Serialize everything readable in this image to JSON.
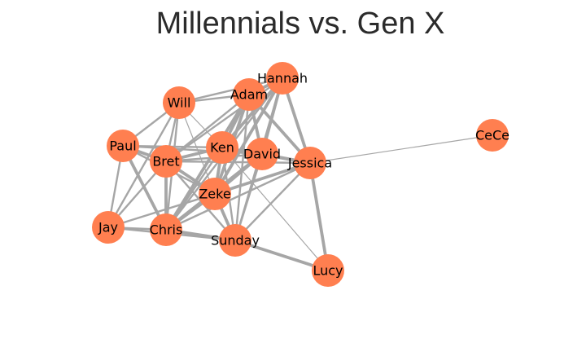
{
  "title": "Millennials vs. Gen X",
  "colors": {
    "node_fill": "#FF7F50",
    "edge": "#a6a6a6",
    "title": "#2b2b2b",
    "background": "#ffffff"
  },
  "nodes": [
    {
      "id": "will",
      "label": "Will"
    },
    {
      "id": "adam",
      "label": "Adam"
    },
    {
      "id": "hannah",
      "label": "Hannah"
    },
    {
      "id": "paul",
      "label": "Paul"
    },
    {
      "id": "bret",
      "label": "Bret"
    },
    {
      "id": "ken",
      "label": "Ken"
    },
    {
      "id": "david",
      "label": "David"
    },
    {
      "id": "jessica",
      "label": "Jessica"
    },
    {
      "id": "cece",
      "label": "CeCe"
    },
    {
      "id": "zeke",
      "label": "Zeke"
    },
    {
      "id": "jay",
      "label": "Jay"
    },
    {
      "id": "chris",
      "label": "Chris"
    },
    {
      "id": "sunday",
      "label": "Sunday"
    },
    {
      "id": "lucy",
      "label": "Lucy"
    }
  ],
  "edges": [
    {
      "source": "jessica",
      "target": "cece",
      "weight": 1
    },
    {
      "source": "will",
      "target": "adam",
      "weight": 2
    },
    {
      "source": "will",
      "target": "hannah",
      "weight": 2
    },
    {
      "source": "will",
      "target": "paul",
      "weight": 2
    },
    {
      "source": "will",
      "target": "bret",
      "weight": 2
    },
    {
      "source": "will",
      "target": "ken",
      "weight": 1
    },
    {
      "source": "will",
      "target": "zeke",
      "weight": 1
    },
    {
      "source": "will",
      "target": "chris",
      "weight": 2
    },
    {
      "source": "will",
      "target": "jay",
      "weight": 2
    },
    {
      "source": "adam",
      "target": "hannah",
      "weight": 3
    },
    {
      "source": "adam",
      "target": "ken",
      "weight": 3
    },
    {
      "source": "adam",
      "target": "david",
      "weight": 3
    },
    {
      "source": "adam",
      "target": "jessica",
      "weight": 3
    },
    {
      "source": "adam",
      "target": "bret",
      "weight": 2
    },
    {
      "source": "adam",
      "target": "zeke",
      "weight": 3
    },
    {
      "source": "adam",
      "target": "chris",
      "weight": 3
    },
    {
      "source": "adam",
      "target": "sunday",
      "weight": 2
    },
    {
      "source": "hannah",
      "target": "jessica",
      "weight": 3
    },
    {
      "source": "hannah",
      "target": "david",
      "weight": 3
    },
    {
      "source": "hannah",
      "target": "ken",
      "weight": 3
    },
    {
      "source": "hannah",
      "target": "zeke",
      "weight": 3
    },
    {
      "source": "hannah",
      "target": "bret",
      "weight": 2
    },
    {
      "source": "hannah",
      "target": "chris",
      "weight": 2
    },
    {
      "source": "hannah",
      "target": "sunday",
      "weight": 2
    },
    {
      "source": "paul",
      "target": "bret",
      "weight": 3
    },
    {
      "source": "paul",
      "target": "ken",
      "weight": 2
    },
    {
      "source": "paul",
      "target": "zeke",
      "weight": 2
    },
    {
      "source": "paul",
      "target": "jay",
      "weight": 2
    },
    {
      "source": "paul",
      "target": "chris",
      "weight": 3
    },
    {
      "source": "paul",
      "target": "david",
      "weight": 2
    },
    {
      "source": "bret",
      "target": "ken",
      "weight": 3
    },
    {
      "source": "bret",
      "target": "david",
      "weight": 2
    },
    {
      "source": "bret",
      "target": "jessica",
      "weight": 2
    },
    {
      "source": "bret",
      "target": "zeke",
      "weight": 3
    },
    {
      "source": "bret",
      "target": "chris",
      "weight": 3
    },
    {
      "source": "bret",
      "target": "jay",
      "weight": 2
    },
    {
      "source": "bret",
      "target": "sunday",
      "weight": 2
    },
    {
      "source": "ken",
      "target": "david",
      "weight": 3
    },
    {
      "source": "ken",
      "target": "jessica",
      "weight": 3
    },
    {
      "source": "ken",
      "target": "zeke",
      "weight": 3
    },
    {
      "source": "ken",
      "target": "sunday",
      "weight": 2
    },
    {
      "source": "ken",
      "target": "chris",
      "weight": 2
    },
    {
      "source": "ken",
      "target": "lucy",
      "weight": 1
    },
    {
      "source": "david",
      "target": "jessica",
      "weight": 3
    },
    {
      "source": "david",
      "target": "zeke",
      "weight": 3
    },
    {
      "source": "david",
      "target": "chris",
      "weight": 3
    },
    {
      "source": "david",
      "target": "sunday",
      "weight": 2
    },
    {
      "source": "jessica",
      "target": "zeke",
      "weight": 3
    },
    {
      "source": "jessica",
      "target": "sunday",
      "weight": 2
    },
    {
      "source": "jessica",
      "target": "lucy",
      "weight": 3
    },
    {
      "source": "jessica",
      "target": "chris",
      "weight": 2
    },
    {
      "source": "zeke",
      "target": "chris",
      "weight": 3
    },
    {
      "source": "zeke",
      "target": "sunday",
      "weight": 3
    },
    {
      "source": "zeke",
      "target": "jay",
      "weight": 2
    },
    {
      "source": "jay",
      "target": "chris",
      "weight": 2
    },
    {
      "source": "jay",
      "target": "sunday",
      "weight": 2
    },
    {
      "source": "chris",
      "target": "sunday",
      "weight": 3
    },
    {
      "source": "sunday",
      "target": "lucy",
      "weight": 3
    }
  ]
}
